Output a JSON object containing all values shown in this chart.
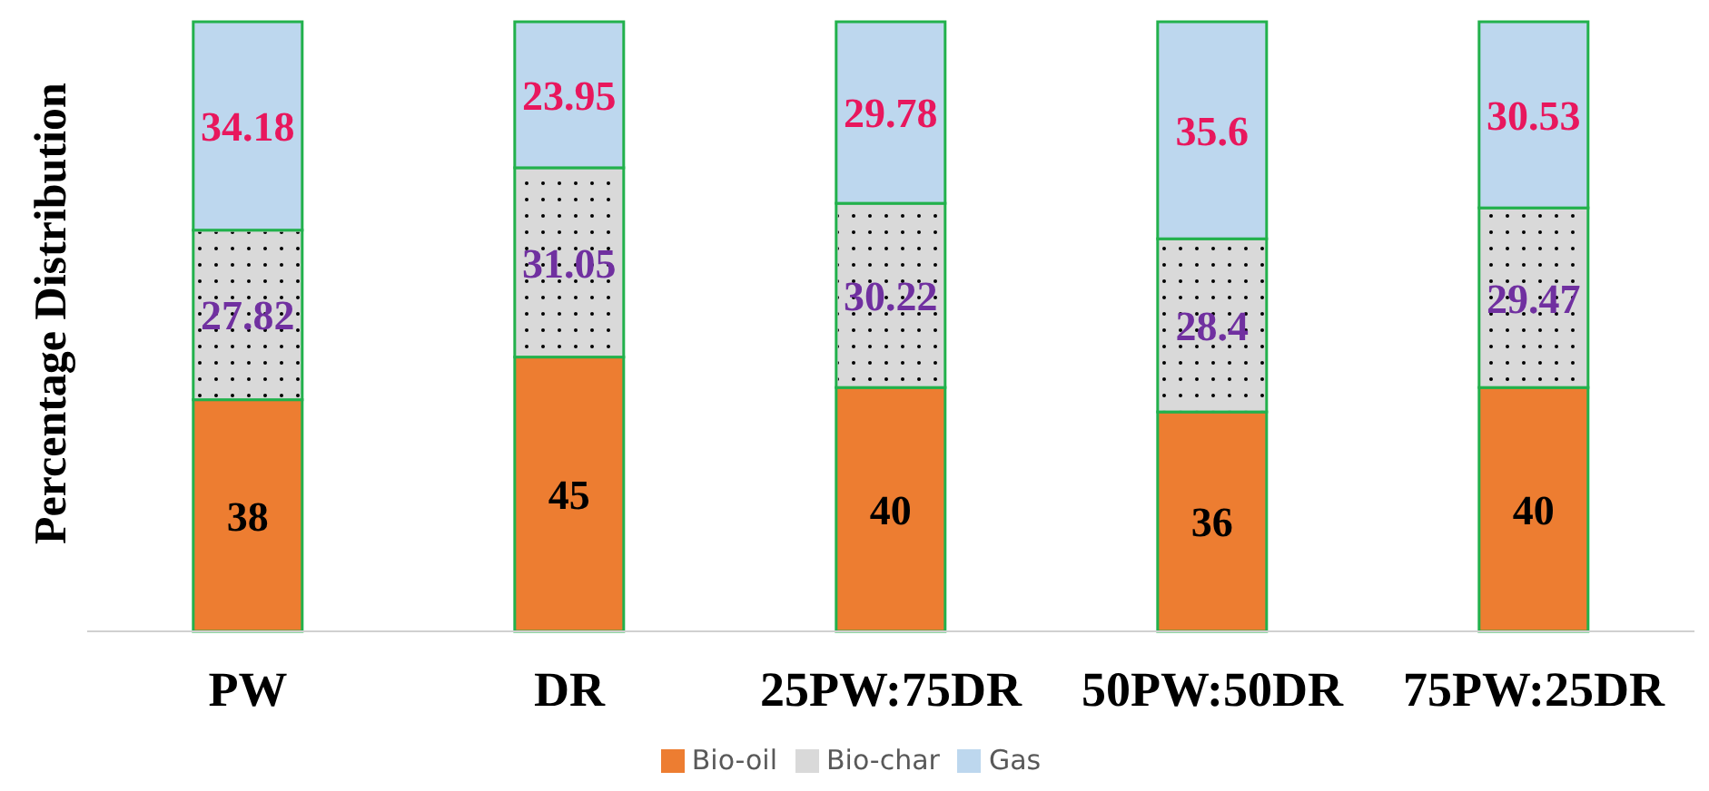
{
  "chart_data": {
    "type": "bar",
    "stacked": true,
    "ylabel": "Percentage Distribution",
    "categories": [
      "PW",
      "DR",
      "25PW:75DR",
      "50PW:50DR",
      "75PW:25DR"
    ],
    "series": [
      {
        "name": "Bio-oil",
        "color": "#ed7d31",
        "values": [
          38,
          45,
          40,
          36,
          40
        ]
      },
      {
        "name": "Bio-char",
        "color": "#d9d9d9",
        "values": [
          27.82,
          31.05,
          30.22,
          28.4,
          29.47
        ]
      },
      {
        "name": "Gas",
        "color": "#bdd7ee",
        "values": [
          34.18,
          23.95,
          29.78,
          35.6,
          30.53
        ]
      }
    ],
    "data_labels": true,
    "legend": "bottom",
    "grid": false
  }
}
